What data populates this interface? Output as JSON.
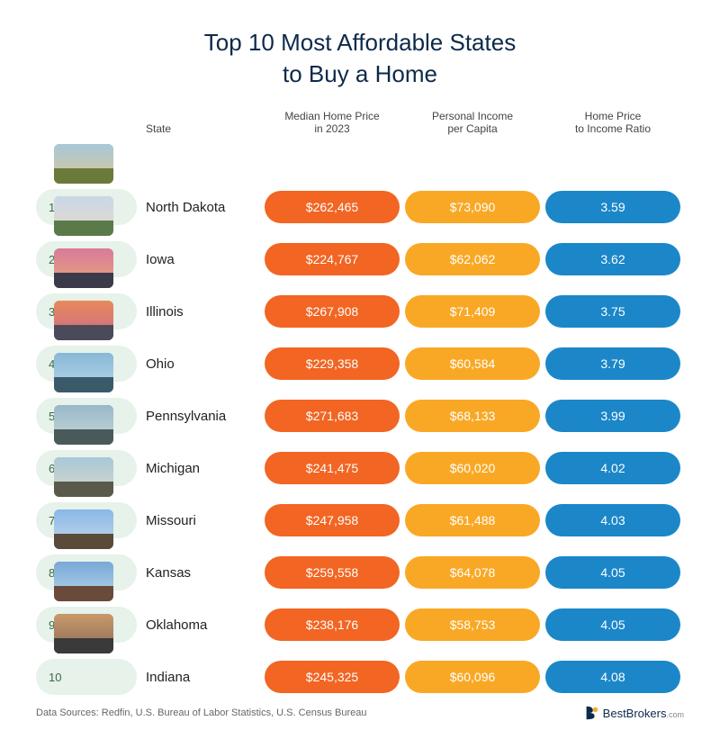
{
  "title_line1": "Top 10 Most Affordable States",
  "title_line2": "to Buy a Home",
  "columns": {
    "state": "State",
    "price": "Median Home Price\nin 2023",
    "income": "Personal Income\nper Capita",
    "ratio": "Home Price\nto Income Ratio"
  },
  "colors": {
    "rank_pill_bg": "#e6f2ea",
    "rank_text": "#3a6a48",
    "price_pill": "#f26522",
    "income_pill": "#f9a825",
    "ratio_pill": "#1b87c9",
    "title_color": "#0d2a4a",
    "logo_accent": "#f9a825",
    "logo_main": "#0d2a4a"
  },
  "rows": [
    {
      "rank": "1",
      "state": "North Dakota",
      "price": "$262,465",
      "income": "$73,090",
      "ratio": "3.59",
      "thumb_sky": "linear-gradient(#a8c8d8,#d8c898)",
      "thumb_ground": "#6a7a3a"
    },
    {
      "rank": "2",
      "state": "Iowa",
      "price": "$224,767",
      "income": "$62,062",
      "ratio": "3.62",
      "thumb_sky": "linear-gradient(#c8d8e8,#e8d8c8)",
      "thumb_ground": "#5a7a4a"
    },
    {
      "rank": "3",
      "state": "Illinois",
      "price": "$267,908",
      "income": "$71,409",
      "ratio": "3.75",
      "thumb_sky": "linear-gradient(#d87a9a,#e8a878)",
      "thumb_ground": "#3a3a4a"
    },
    {
      "rank": "4",
      "state": "Ohio",
      "price": "$229,358",
      "income": "$60,584",
      "ratio": "3.79",
      "thumb_sky": "linear-gradient(#e88a5a,#c86a8a)",
      "thumb_ground": "#4a4a5a"
    },
    {
      "rank": "5",
      "state": "Pennsylvania",
      "price": "$271,683",
      "income": "$68,133",
      "ratio": "3.99",
      "thumb_sky": "linear-gradient(#88b8d8,#b8d8e8)",
      "thumb_ground": "#3a5a6a"
    },
    {
      "rank": "6",
      "state": "Michigan",
      "price": "$241,475",
      "income": "$60,020",
      "ratio": "4.02",
      "thumb_sky": "linear-gradient(#98b8c8,#c8d8d8)",
      "thumb_ground": "#4a5a5a"
    },
    {
      "rank": "7",
      "state": "Missouri",
      "price": "$247,958",
      "income": "$61,488",
      "ratio": "4.03",
      "thumb_sky": "linear-gradient(#a8c8d8,#d8d8c8)",
      "thumb_ground": "#5a5a4a"
    },
    {
      "rank": "8",
      "state": "Kansas",
      "price": "$259,558",
      "income": "$64,078",
      "ratio": "4.05",
      "thumb_sky": "linear-gradient(#88b8e8,#c8d8e8)",
      "thumb_ground": "#5a4a3a"
    },
    {
      "rank": "9",
      "state": "Oklahoma",
      "price": "$238,176",
      "income": "$58,753",
      "ratio": "4.05",
      "thumb_sky": "linear-gradient(#78a8d8,#b8d8e8)",
      "thumb_ground": "#6a4a3a"
    },
    {
      "rank": "10",
      "state": "Indiana",
      "price": "$245,325",
      "income": "$60,096",
      "ratio": "4.08",
      "thumb_sky": "linear-gradient(#c89a6a,#8a6a5a)",
      "thumb_ground": "#3a3a3a"
    }
  ],
  "footer_sources": "Data Sources: Redfin, U.S. Bureau of Labor Statistics, U.S. Census Bureau",
  "logo_name": "BestBrokers",
  "logo_suffix": ".com"
}
